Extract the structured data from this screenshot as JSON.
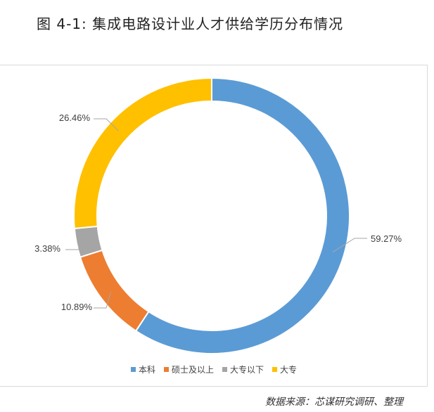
{
  "title": "图 4-1: 集成电路设计业人才供给学历分布情况",
  "source": "数据来源：芯谋研究调研、整理",
  "chart_data": {
    "type": "pie",
    "donut": true,
    "categories": [
      "本科",
      "硕士及以上",
      "大专以下",
      "大专"
    ],
    "values": [
      59.27,
      10.89,
      3.38,
      26.46
    ],
    "labels": [
      "59.27%",
      "10.89%",
      "3.38%",
      "26.46%"
    ],
    "colors": [
      "#5b9bd5",
      "#ed7d31",
      "#a5a5a5",
      "#ffc000"
    ],
    "legend_position": "bottom"
  }
}
